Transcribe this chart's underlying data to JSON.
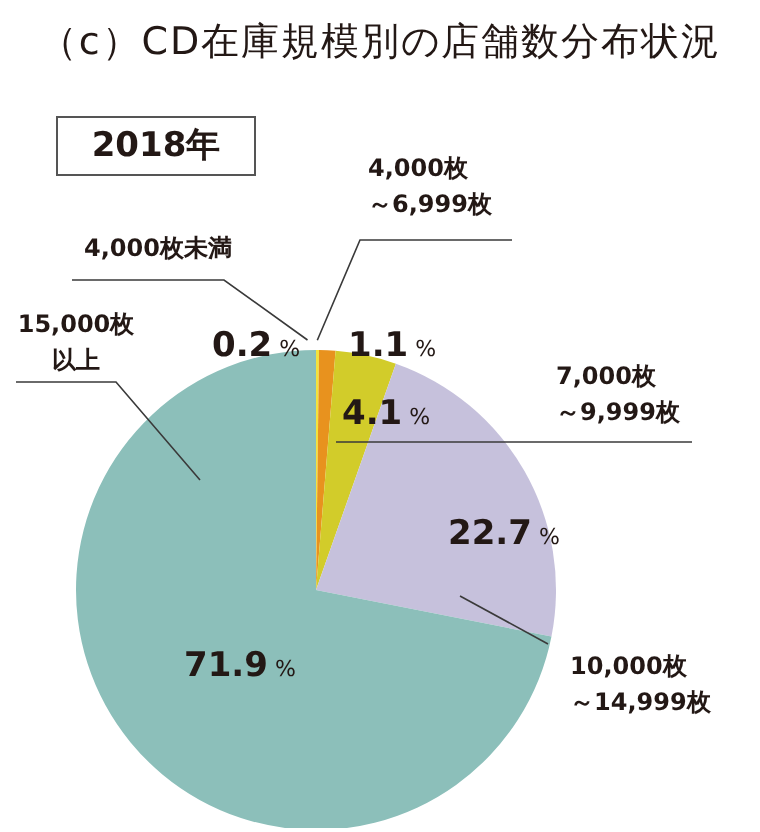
{
  "chart_data": {
    "type": "pie",
    "title": "（c）CD在庫規模別の店舗数分布状況",
    "subtitle": "2018年",
    "categories": [
      "4,000枚未満",
      "4,000枚～6,999枚",
      "7,000枚～9,999枚",
      "10,000枚～14,999枚",
      "15,000枚以上"
    ],
    "values": [
      0.2,
      1.1,
      4.1,
      22.7,
      71.9
    ],
    "colors": [
      "#f3e33c",
      "#e8921e",
      "#d2cc2a",
      "#c6c1dc",
      "#8cbfba"
    ],
    "value_labels": [
      "0.2 %",
      "1.1 %",
      "4.1 %",
      "22.7 %",
      "71.9 %"
    ]
  }
}
